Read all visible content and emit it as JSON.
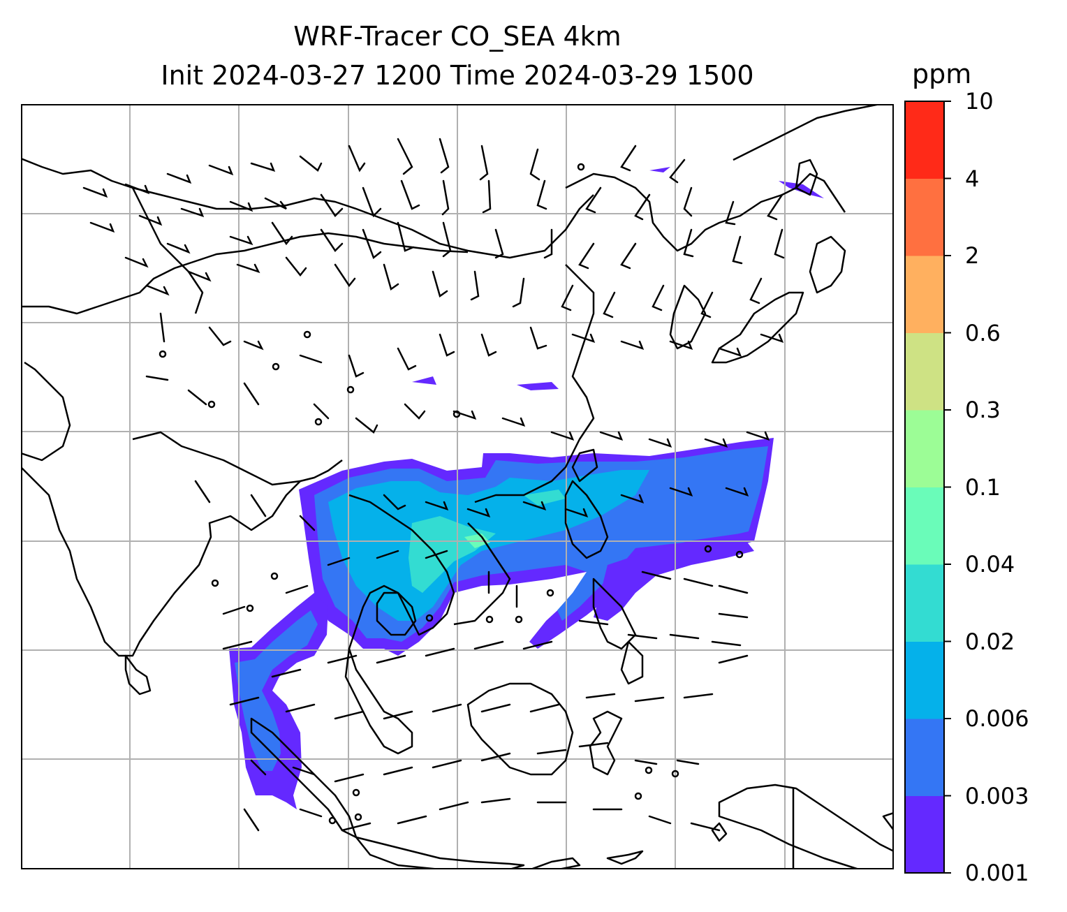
{
  "title": {
    "line1": "WRF-Tracer CO_SEA 4km",
    "line2": "Init 2024-03-27 1200 Time 2024-03-29 1500"
  },
  "colorbar": {
    "units": "ppm",
    "levels": [
      "0.001",
      "0.003",
      "0.006",
      "0.02",
      "0.04",
      "0.1",
      "0.3",
      "0.6",
      "2",
      "4",
      "10"
    ],
    "colors": [
      "#6429ff",
      "#3476f4",
      "#05b1ea",
      "#33dcd2",
      "#6afcb9",
      "#9cfd96",
      "#cee284",
      "#ffb05f",
      "#ff7040",
      "#ff2a18"
    ]
  },
  "map": {
    "gridline_color": "#b0b0b0",
    "coastline_color": "#000000",
    "wind_barb_color": "#000000"
  }
}
